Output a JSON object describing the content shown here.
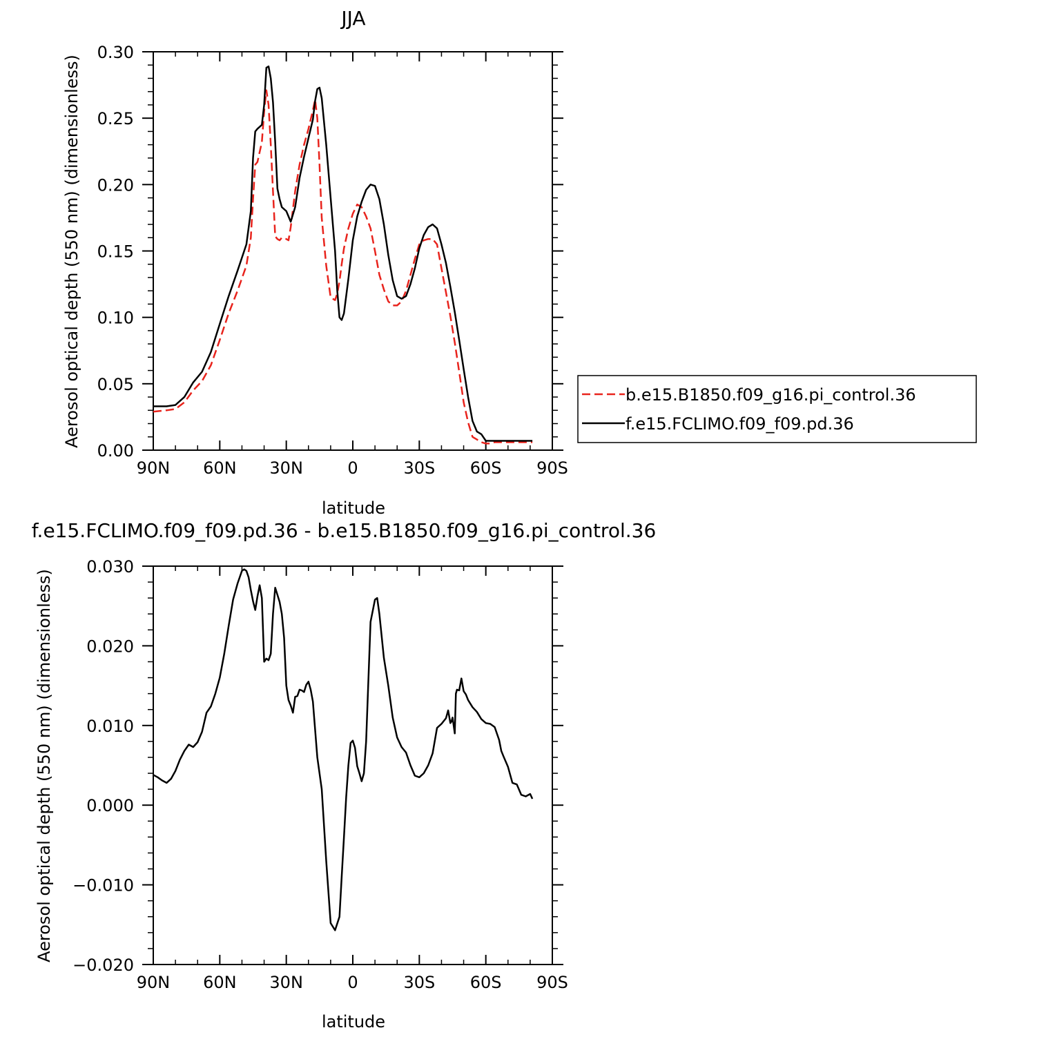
{
  "chart_data": [
    {
      "type": "line",
      "title": "JJA",
      "xlabel": "latitude",
      "ylabel": "Aerosol optical depth (550 nm) (dimensionless)",
      "xlim": [
        90,
        -90
      ],
      "ylim": [
        0,
        0.3
      ],
      "xticks": [
        90,
        60,
        30,
        0,
        -30,
        -60,
        -90
      ],
      "xtick_labels": [
        "90N",
        "60N",
        "30N",
        "0",
        "30S",
        "60S",
        "90S"
      ],
      "yticks": [
        0,
        0.05,
        0.1,
        0.15,
        0.2,
        0.25,
        0.3
      ],
      "ytick_labels": [
        "0.00",
        "0.05",
        "0.10",
        "0.15",
        "0.20",
        "0.25",
        "0.30"
      ],
      "legend_position": "right",
      "series": [
        {
          "name": "b.e15.B1850.f09_g16.pi_control.36",
          "color": "#e8231c",
          "dash": "dashed",
          "x": [
            90,
            84,
            80,
            76,
            72,
            68,
            64,
            60,
            56,
            52,
            48,
            46,
            45,
            44,
            43,
            41,
            40,
            39,
            38,
            37,
            36,
            35,
            34,
            33,
            32,
            30,
            29,
            28,
            26,
            24,
            22,
            20,
            18,
            17,
            16,
            15,
            14,
            12,
            10,
            8,
            7,
            6,
            5,
            4,
            2,
            0,
            -2,
            -4,
            -6,
            -8,
            -10,
            -12,
            -14,
            -16,
            -18,
            -20,
            -22,
            -24,
            -26,
            -28,
            -30,
            -32,
            -34,
            -36,
            -38,
            -40,
            -42,
            -44,
            -46,
            -48,
            -50,
            -52,
            -54,
            -56,
            -58,
            -60,
            -62,
            -64,
            -66,
            -68,
            -70,
            -71,
            -72,
            -74,
            -76,
            -78,
            -80,
            -81
          ],
          "y": [
            0.029,
            0.03,
            0.031,
            0.036,
            0.045,
            0.052,
            0.064,
            0.083,
            0.103,
            0.12,
            0.139,
            0.16,
            0.189,
            0.215,
            0.217,
            0.232,
            0.255,
            0.271,
            0.26,
            0.23,
            0.195,
            0.161,
            0.159,
            0.158,
            0.16,
            0.159,
            0.158,
            0.168,
            0.195,
            0.215,
            0.23,
            0.242,
            0.256,
            0.264,
            0.25,
            0.215,
            0.175,
            0.139,
            0.115,
            0.113,
            0.118,
            0.127,
            0.14,
            0.152,
            0.167,
            0.178,
            0.185,
            0.183,
            0.176,
            0.167,
            0.15,
            0.132,
            0.121,
            0.112,
            0.109,
            0.109,
            0.112,
            0.12,
            0.132,
            0.144,
            0.155,
            0.158,
            0.159,
            0.159,
            0.155,
            0.137,
            0.119,
            0.101,
            0.081,
            0.059,
            0.036,
            0.021,
            0.01,
            0.008,
            0.006,
            0.005,
            0.005,
            0.006,
            0.006,
            0.006,
            0.006,
            0.006,
            0.006,
            0.006,
            0.006,
            0.006,
            0.006,
            0.006
          ]
        },
        {
          "name": "f.e15.FCLIMO.f09_f09.pd.36",
          "color": "#000000",
          "dash": "solid",
          "x": [
            90,
            84,
            80,
            76,
            72,
            68,
            64,
            60,
            56,
            52,
            48,
            46,
            45,
            44,
            43,
            41,
            40,
            39,
            38,
            37,
            36,
            35,
            34,
            33,
            32,
            30,
            29,
            28,
            26,
            24,
            22,
            20,
            18,
            17,
            16,
            15,
            14,
            12,
            10,
            8,
            7,
            6,
            5,
            4,
            2,
            0,
            -2,
            -4,
            -6,
            -8,
            -10,
            -12,
            -14,
            -16,
            -18,
            -20,
            -22,
            -24,
            -26,
            -28,
            -30,
            -32,
            -34,
            -36,
            -38,
            -40,
            -42,
            -44,
            -46,
            -48,
            -50,
            -52,
            -54,
            -56,
            -58,
            -60,
            -62,
            -64,
            -66,
            -68,
            -70,
            -71,
            -72,
            -74,
            -76,
            -78,
            -80,
            -81
          ],
          "y": [
            0.033,
            0.033,
            0.034,
            0.04,
            0.051,
            0.059,
            0.074,
            0.095,
            0.116,
            0.135,
            0.155,
            0.18,
            0.22,
            0.24,
            0.242,
            0.245,
            0.26,
            0.288,
            0.289,
            0.28,
            0.262,
            0.232,
            0.197,
            0.189,
            0.183,
            0.18,
            0.176,
            0.172,
            0.183,
            0.205,
            0.221,
            0.235,
            0.249,
            0.263,
            0.272,
            0.273,
            0.265,
            0.23,
            0.19,
            0.15,
            0.12,
            0.1,
            0.098,
            0.103,
            0.129,
            0.158,
            0.176,
            0.187,
            0.196,
            0.2,
            0.199,
            0.189,
            0.17,
            0.147,
            0.128,
            0.116,
            0.114,
            0.116,
            0.125,
            0.137,
            0.152,
            0.162,
            0.168,
            0.17,
            0.167,
            0.155,
            0.141,
            0.123,
            0.104,
            0.083,
            0.061,
            0.04,
            0.022,
            0.014,
            0.012,
            0.007,
            0.007,
            0.007,
            0.007,
            0.007,
            0.007,
            0.007,
            0.007,
            0.007,
            0.007,
            0.007,
            0.007,
            0.007
          ]
        }
      ]
    },
    {
      "type": "line",
      "title": "f.e15.FCLIMO.f09_f09.pd.36 - b.e15.B1850.f09_g16.pi_control.36",
      "xlabel": "latitude",
      "ylabel": "Aerosol optical depth (550 nm) (dimensionless)",
      "xlim": [
        90,
        -90
      ],
      "ylim": [
        -0.02,
        0.03
      ],
      "xticks": [
        90,
        60,
        30,
        0,
        -30,
        -60,
        -90
      ],
      "xtick_labels": [
        "90N",
        "60N",
        "30N",
        "0",
        "30S",
        "60S",
        "90S"
      ],
      "yticks": [
        -0.02,
        -0.01,
        0,
        0.01,
        0.02,
        0.03
      ],
      "ytick_labels": [
        "−0.020",
        "−0.010",
        "0.000",
        "0.010",
        "0.020",
        "0.030"
      ],
      "series": [
        {
          "color": "#000000",
          "dash": "solid",
          "x": [
            90,
            88,
            86,
            84,
            82,
            80,
            78,
            76,
            74,
            72,
            70,
            68,
            66,
            64,
            62,
            60,
            58,
            56,
            54,
            52,
            50,
            49,
            48,
            47,
            46,
            45,
            44,
            43,
            42,
            41,
            40,
            39,
            38,
            37,
            36,
            35,
            34,
            33,
            32,
            31,
            30,
            29,
            28,
            27,
            26,
            25,
            24,
            23,
            22,
            21,
            20,
            19,
            18,
            16,
            14,
            12,
            10,
            8,
            6,
            5,
            4,
            3,
            2,
            1,
            0,
            -1,
            -2,
            -3,
            -4,
            -5,
            -6,
            -8,
            -10,
            -11,
            -12,
            -14,
            -16,
            -18,
            -20,
            -22,
            -24,
            -26,
            -28,
            -30,
            -32,
            -34,
            -36,
            -38,
            -40,
            -42,
            -43,
            -44,
            -44.5,
            -45,
            -46,
            -46.5,
            -47,
            -48,
            -49,
            -50,
            -51,
            -52,
            -54,
            -56,
            -58,
            -60,
            -62,
            -64,
            -66,
            -67,
            -68,
            -70,
            -72,
            -74,
            -76,
            -78,
            -80,
            -81
          ],
          "y": [
            0.0038,
            0.0035,
            0.0031,
            0.0028,
            0.0033,
            0.0043,
            0.0057,
            0.0068,
            0.0076,
            0.0073,
            0.0079,
            0.0092,
            0.0116,
            0.0124,
            0.014,
            0.016,
            0.019,
            0.0225,
            0.0258,
            0.0278,
            0.0294,
            0.0296,
            0.0294,
            0.0286,
            0.027,
            0.0256,
            0.0245,
            0.0262,
            0.0276,
            0.026,
            0.018,
            0.0184,
            0.0182,
            0.019,
            0.024,
            0.0273,
            0.0264,
            0.0255,
            0.024,
            0.021,
            0.015,
            0.0132,
            0.0125,
            0.0116,
            0.0136,
            0.0137,
            0.0145,
            0.0144,
            0.0142,
            0.0151,
            0.0155,
            0.0145,
            0.013,
            0.006,
            0.002,
            -0.007,
            -0.0148,
            -0.0157,
            -0.014,
            -0.009,
            -0.004,
            0.001,
            0.005,
            0.0078,
            0.0081,
            0.0072,
            0.0049,
            0.004,
            0.003,
            0.004,
            0.008,
            0.023,
            0.0258,
            0.026,
            0.024,
            0.0185,
            0.015,
            0.011,
            0.0085,
            0.0073,
            0.0066,
            0.005,
            0.0037,
            0.0035,
            0.004,
            0.005,
            0.0065,
            0.0097,
            0.0102,
            0.0109,
            0.0119,
            0.0103,
            0.0105,
            0.011,
            0.009,
            0.014,
            0.0145,
            0.0144,
            0.0159,
            0.0143,
            0.0139,
            0.0132,
            0.0123,
            0.0117,
            0.0108,
            0.0103,
            0.0102,
            0.0098,
            0.0082,
            0.0068,
            0.0061,
            0.0048,
            0.0028,
            0.0026,
            0.0013,
            0.0011,
            0.0014,
            0.0008
          ]
        }
      ]
    }
  ]
}
